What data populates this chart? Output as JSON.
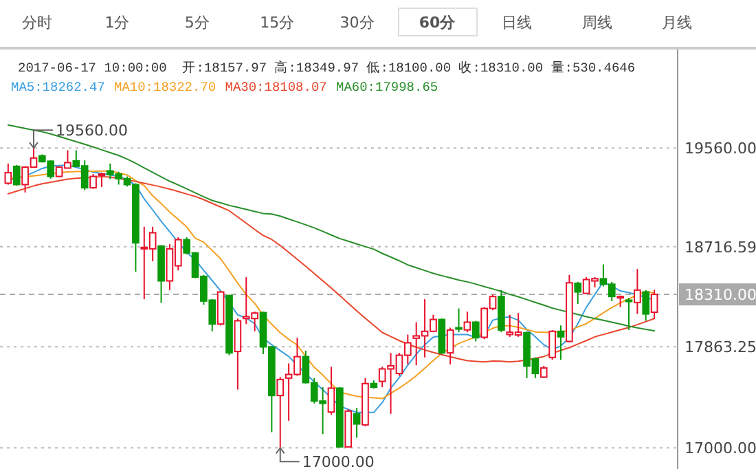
{
  "chart_data": {
    "type": "candlestick",
    "title": "2017-06-17 10:00:00  开:18157.97 高:18349.97 低:18100.00 收:18310.00 量:530.4646",
    "categories": [
      null,
      null,
      null,
      null,
      null,
      null,
      null,
      null,
      null,
      null,
      null,
      null,
      null,
      null,
      null,
      null,
      null,
      null,
      null,
      null,
      null,
      null,
      null,
      null,
      null,
      null,
      null,
      null,
      null,
      null,
      null,
      null,
      null,
      null,
      null,
      null,
      null,
      null,
      null,
      null,
      null,
      null,
      null,
      null,
      null,
      null,
      null,
      null,
      null,
      null,
      null,
      null,
      null,
      null,
      null,
      null,
      null,
      null,
      null,
      null,
      null,
      null,
      null,
      null,
      null,
      null,
      null,
      null,
      null,
      null,
      null,
      null,
      null,
      null,
      null,
      null,
      null
    ],
    "ohlc": [
      [
        19259,
        19427,
        19247,
        19349
      ],
      [
        19403,
        19415,
        19239,
        19247
      ],
      [
        19247,
        19404,
        19180,
        19396
      ],
      [
        19396,
        19560,
        19396,
        19474
      ],
      [
        19493,
        19505,
        19435,
        19443
      ],
      [
        19447,
        19454,
        19298,
        19317
      ],
      [
        19317,
        19404,
        19309,
        19396
      ],
      [
        19388,
        19540,
        19388,
        19435
      ],
      [
        19450,
        19540,
        19396,
        19403
      ],
      [
        19407,
        19454,
        19200,
        19220
      ],
      [
        19220,
        19337,
        19212,
        19317
      ],
      [
        19325,
        19349,
        19227,
        19337
      ],
      [
        19364,
        19427,
        19294,
        19333
      ],
      [
        19337,
        19357,
        19247,
        19298
      ],
      [
        19298,
        19317,
        19231,
        19247
      ],
      [
        19247,
        19259,
        18503,
        18750
      ],
      [
        18703,
        18887,
        18269,
        18711
      ],
      [
        18699,
        18887,
        18593,
        18836
      ],
      [
        18723,
        18730,
        18238,
        18425
      ],
      [
        18425,
        18738,
        18347,
        18699
      ],
      [
        18554,
        18797,
        18515,
        18777
      ],
      [
        18777,
        18797,
        18652,
        18664
      ],
      [
        18664,
        18672,
        18449,
        18457
      ],
      [
        18464,
        18476,
        18222,
        18253
      ],
      [
        18261,
        18269,
        17995,
        18057
      ],
      [
        18057,
        18339,
        18045,
        18331
      ],
      [
        18300,
        18308,
        17791,
        17811
      ],
      [
        17823,
        18104,
        17498,
        18085
      ],
      [
        18104,
        18457,
        18057,
        18120
      ],
      [
        18104,
        18163,
        17995,
        18151
      ],
      [
        18155,
        18163,
        17800,
        17862
      ],
      [
        17862,
        17870,
        17134,
        17447
      ],
      [
        17447,
        17604,
        17000,
        17584
      ],
      [
        17596,
        17721,
        17232,
        17627
      ],
      [
        17627,
        17940,
        17615,
        17779
      ],
      [
        17779,
        17830,
        17549,
        17557
      ],
      [
        17557,
        17596,
        17380,
        17400
      ],
      [
        17400,
        17518,
        17118,
        17380
      ],
      [
        17306,
        17693,
        17283,
        17510
      ],
      [
        17510,
        17518,
        17005,
        17009
      ],
      [
        17009,
        17330,
        17005,
        17314
      ],
      [
        17291,
        17341,
        17087,
        17204
      ],
      [
        17197,
        17596,
        17185,
        17549
      ],
      [
        17549,
        17576,
        17506,
        17518
      ],
      [
        17568,
        17693,
        17518,
        17674
      ],
      [
        17674,
        17811,
        17291,
        17701
      ],
      [
        17635,
        17811,
        17615,
        17791
      ],
      [
        17791,
        17967,
        17713,
        17897
      ],
      [
        17936,
        18073,
        17705,
        17956
      ],
      [
        17956,
        18269,
        17772,
        17995
      ],
      [
        17995,
        18136,
        17987,
        18096
      ],
      [
        18096,
        18104,
        17799,
        17811
      ],
      [
        17811,
        18026,
        17713,
        18006
      ],
      [
        18026,
        18190,
        17987,
        18014
      ],
      [
        18007,
        18163,
        17987,
        18073
      ],
      [
        18073,
        18085,
        17909,
        17940
      ],
      [
        17944,
        18202,
        17928,
        18190
      ],
      [
        18190,
        18308,
        18175,
        18292
      ],
      [
        18292,
        18347,
        17987,
        18006
      ],
      [
        17968,
        18136,
        17948,
        17987
      ],
      [
        17964,
        18151,
        17948,
        17987
      ],
      [
        17983,
        17995,
        17596,
        17698
      ],
      [
        17760,
        17772,
        17596,
        17635
      ],
      [
        17604,
        17701,
        17596,
        17682
      ],
      [
        17772,
        18006,
        17752,
        17995
      ],
      [
        17995,
        18045,
        17752,
        17948
      ],
      [
        17909,
        18476,
        17901,
        18409
      ],
      [
        18405,
        18417,
        18229,
        18331
      ],
      [
        18319,
        18457,
        18319,
        18437
      ],
      [
        18425,
        18457,
        18370,
        18444
      ],
      [
        18444,
        18566,
        18378,
        18397
      ],
      [
        18397,
        18417,
        18253,
        18292
      ],
      [
        18280,
        18300,
        18202,
        18292
      ],
      [
        18261,
        18280,
        18007,
        18249
      ],
      [
        18241,
        18527,
        18143,
        18347
      ],
      [
        18331,
        18347,
        18085,
        18143
      ],
      [
        18157.97,
        18349.97,
        18100,
        18310
      ]
    ],
    "series": [
      {
        "type": "line",
        "name": "MA5:18262.47",
        "color": "#3a9ee0",
        "values": [
          19286,
          19300,
          19320,
          19352,
          19385,
          19405,
          19410,
          19414,
          19395,
          19375,
          19354,
          19342,
          19329,
          19318,
          19290,
          19240,
          19126,
          19031,
          18934,
          18845,
          18754,
          18669,
          18606,
          18515,
          18428,
          18339,
          18238,
          18135,
          18110,
          18060,
          17935,
          17880,
          17830,
          17780,
          17706,
          17633,
          17564,
          17497,
          17429,
          17356,
          17329,
          17303,
          17302,
          17302,
          17387,
          17510,
          17600,
          17706,
          17800,
          17880,
          17945,
          17957,
          17967,
          17967,
          17967,
          17944,
          17960,
          18090,
          18110,
          18118,
          18090,
          18010,
          17948,
          17880,
          17840,
          17870,
          17940,
          18060,
          18200,
          18310,
          18417,
          18380,
          18340,
          18325,
          18306,
          18285,
          18262
        ]
      },
      {
        "type": "line",
        "name": "MA10:18322.70",
        "color": "#f5a020",
        "values": [
          19298,
          19306,
          19314,
          19322,
          19331,
          19340,
          19348,
          19355,
          19358,
          19360,
          19361,
          19363,
          19364,
          19347,
          19329,
          19281,
          19239,
          19151,
          19086,
          19013,
          18951,
          18886,
          18790,
          18756,
          18685,
          18613,
          18511,
          18405,
          18310,
          18234,
          18133,
          18055,
          17984,
          17927,
          17878,
          17780,
          17688,
          17622,
          17548,
          17476,
          17458,
          17440,
          17434,
          17428,
          17421,
          17466,
          17510,
          17561,
          17616,
          17680,
          17746,
          17808,
          17850,
          17892,
          17920,
          17948,
          17984,
          18022,
          18044,
          18042,
          18029,
          18010,
          17990,
          17987,
          17987,
          17992,
          17999,
          18033,
          18060,
          18104,
          18153,
          18198,
          18238,
          18273,
          18305,
          18334,
          18323
        ]
      },
      {
        "type": "line",
        "name": "MA30:18108.07",
        "color": "#e8462c",
        "values": [
          19169,
          19191,
          19214,
          19236,
          19254,
          19267,
          19281,
          19294,
          19301,
          19306,
          19310,
          19315,
          19311,
          19299,
          19288,
          19274,
          19259,
          19243,
          19227,
          19209,
          19188,
          19167,
          19146,
          19119,
          19087,
          19056,
          19024,
          18971,
          18918,
          18864,
          18813,
          18779,
          18727,
          18669,
          18610,
          18550,
          18488,
          18427,
          18365,
          18300,
          18235,
          18170,
          18107,
          18046,
          17985,
          17951,
          17916,
          17885,
          17860,
          17836,
          17815,
          17796,
          17778,
          17761,
          17744,
          17739,
          17734,
          17742,
          17740,
          17734,
          17740,
          17752,
          17765,
          17780,
          17808,
          17832,
          17856,
          17886,
          17916,
          17948,
          17968,
          17988,
          18008,
          18028,
          18052,
          18078,
          18104
        ]
      },
      {
        "type": "line",
        "name": "MA60:17998.65",
        "color": "#2a8f2a",
        "values": [
          19756,
          19741,
          19727,
          19712,
          19698,
          19680,
          19658,
          19636,
          19614,
          19592,
          19568,
          19544,
          19520,
          19496,
          19465,
          19429,
          19390,
          19351,
          19313,
          19276,
          19245,
          19211,
          19177,
          19143,
          19112,
          19091,
          19070,
          19053,
          19036,
          19018,
          19001,
          18996,
          18978,
          18953,
          18929,
          18904,
          18878,
          18848,
          18817,
          18787,
          18764,
          18741,
          18718,
          18696,
          18660,
          18629,
          18597,
          18562,
          18538,
          18514,
          18490,
          18470,
          18451,
          18433,
          18417,
          18398,
          18377,
          18357,
          18336,
          18310,
          18290,
          18266,
          18242,
          18218,
          18193,
          18175,
          18157,
          18139,
          18120,
          18104,
          18089,
          18073,
          18057,
          18039,
          18024,
          18011,
          17999
        ]
      }
    ],
    "ylim": [
      16820,
      20400
    ],
    "yticks": [
      {
        "value": 17000,
        "label": "17000.00"
      },
      {
        "value": 17863.25,
        "label": "17863.25"
      },
      {
        "value": 18716.59,
        "label": "18716.59"
      },
      {
        "value": 19560,
        "label": "19560.00"
      }
    ],
    "grid": "y",
    "legend": "top",
    "tick_labels": "y",
    "ref_lines": [
      {
        "axis": "y",
        "value": 18310,
        "label": "18310.00",
        "color": "#aaaaaa",
        "line_style": "dashed"
      }
    ],
    "annotations": [
      "分时",
      "1分",
      "5分",
      "15分",
      "30分",
      "60分",
      "日线",
      "周线",
      "月线",
      {
        "text": "19560.00",
        "y": 19560
      },
      {
        "text": "17000.00",
        "y": 17000
      }
    ]
  }
}
